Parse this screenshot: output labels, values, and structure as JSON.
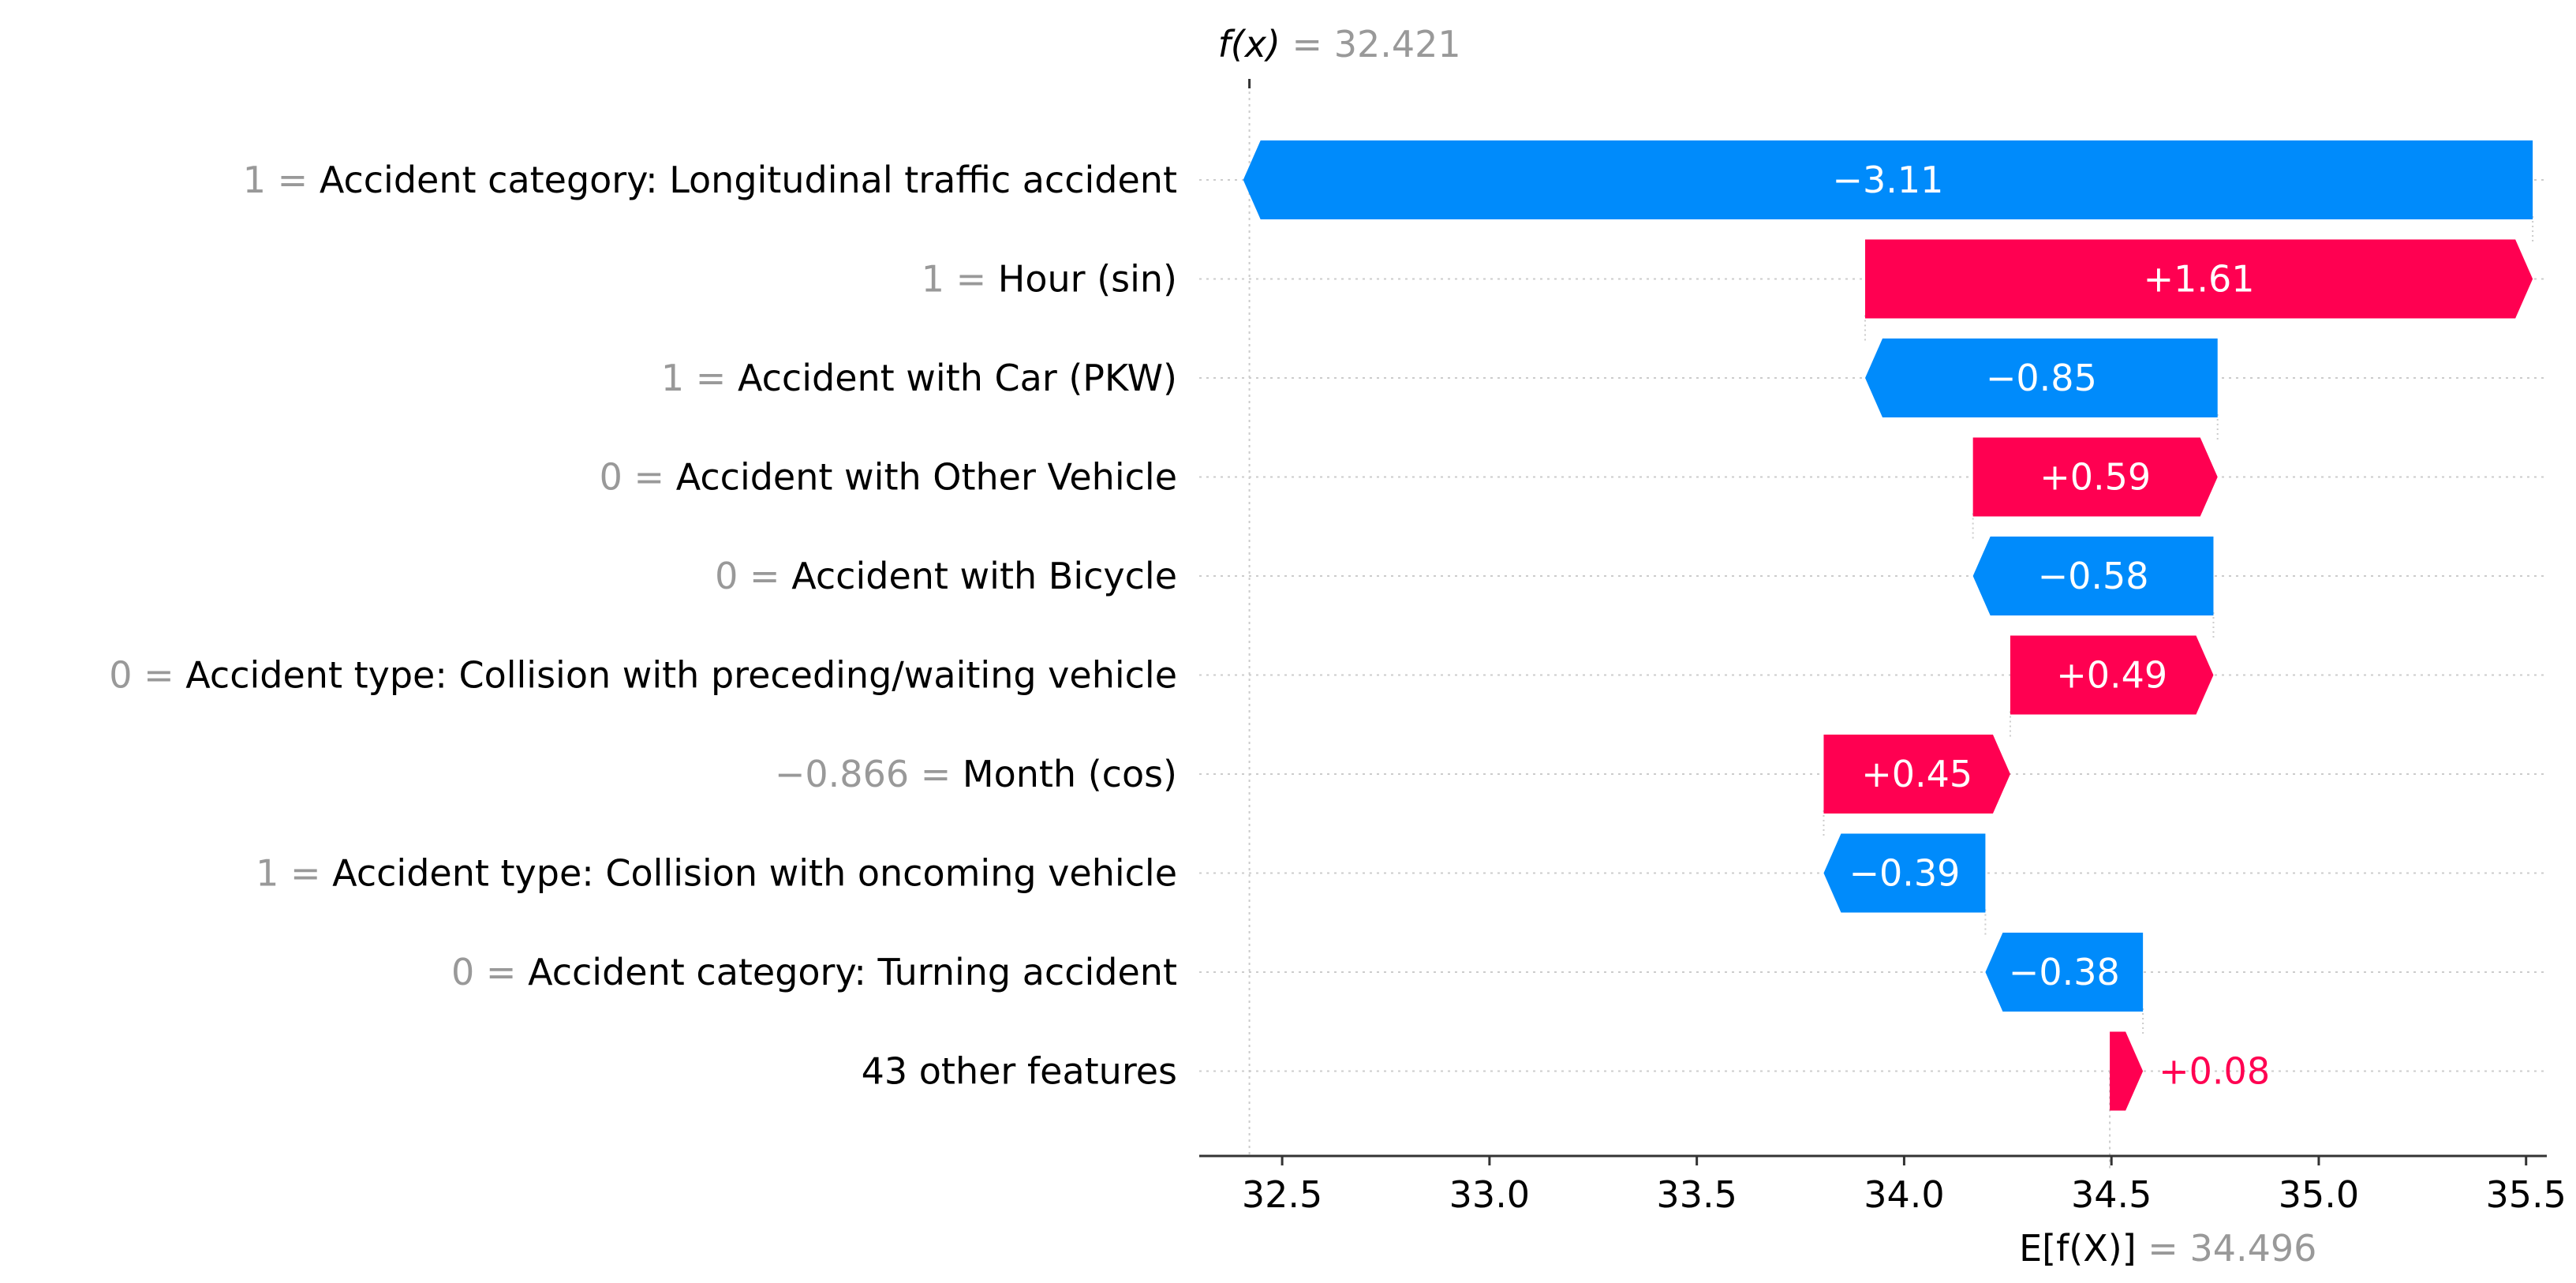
{
  "colors": {
    "positive": "#ff0051",
    "negative": "#008bfb",
    "label_text": "#000000",
    "value_text": "#999999",
    "grid": "#cccccc",
    "inside_text": "#ffffff"
  },
  "chart_data": {
    "type": "waterfall",
    "xlim": [
      32.3,
      35.55
    ],
    "xticks": [
      {
        "value": 32.5,
        "label": "32.5"
      },
      {
        "value": 33.0,
        "label": "33.0"
      },
      {
        "value": 33.5,
        "label": "33.5"
      },
      {
        "value": 34.0,
        "label": "34.0"
      },
      {
        "value": 34.5,
        "label": "34.5"
      },
      {
        "value": 35.0,
        "label": "35.0"
      },
      {
        "value": 35.5,
        "label": "35.5"
      }
    ],
    "fx": {
      "prefix": "f(x)",
      "eq": " = ",
      "value": 32.421,
      "label": "32.421"
    },
    "expected": {
      "prefix": "E[f(X)]",
      "eq": " = ",
      "value": 34.496,
      "label": "34.496"
    },
    "features": [
      {
        "value_text": "1",
        "name": "Accident category: Longitudinal traffic accident",
        "shap": -3.11,
        "label": "−3.11"
      },
      {
        "value_text": "1",
        "name": "Hour (sin)",
        "shap": 1.61,
        "label": "+1.61"
      },
      {
        "value_text": "1",
        "name": "Accident with Car (PKW)",
        "shap": -0.85,
        "label": "−0.85"
      },
      {
        "value_text": "0",
        "name": "Accident with Other Vehicle",
        "shap": 0.59,
        "label": "+0.59"
      },
      {
        "value_text": "0",
        "name": "Accident with Bicycle",
        "shap": -0.58,
        "label": "−0.58"
      },
      {
        "value_text": "0",
        "name": "Accident type: Collision with preceding/waiting vehicle",
        "shap": 0.49,
        "label": "+0.49"
      },
      {
        "value_text": "−0.866",
        "name": "Month (cos)",
        "shap": 0.45,
        "label": "+0.45"
      },
      {
        "value_text": "1",
        "name": "Accident type: Collision with oncoming vehicle",
        "shap": -0.39,
        "label": "−0.39"
      },
      {
        "value_text": "0",
        "name": "Accident category: Turning accident",
        "shap": -0.38,
        "label": "−0.38"
      },
      {
        "value_text": "",
        "name": "43 other features",
        "shap": 0.08,
        "label": "+0.08"
      }
    ]
  }
}
